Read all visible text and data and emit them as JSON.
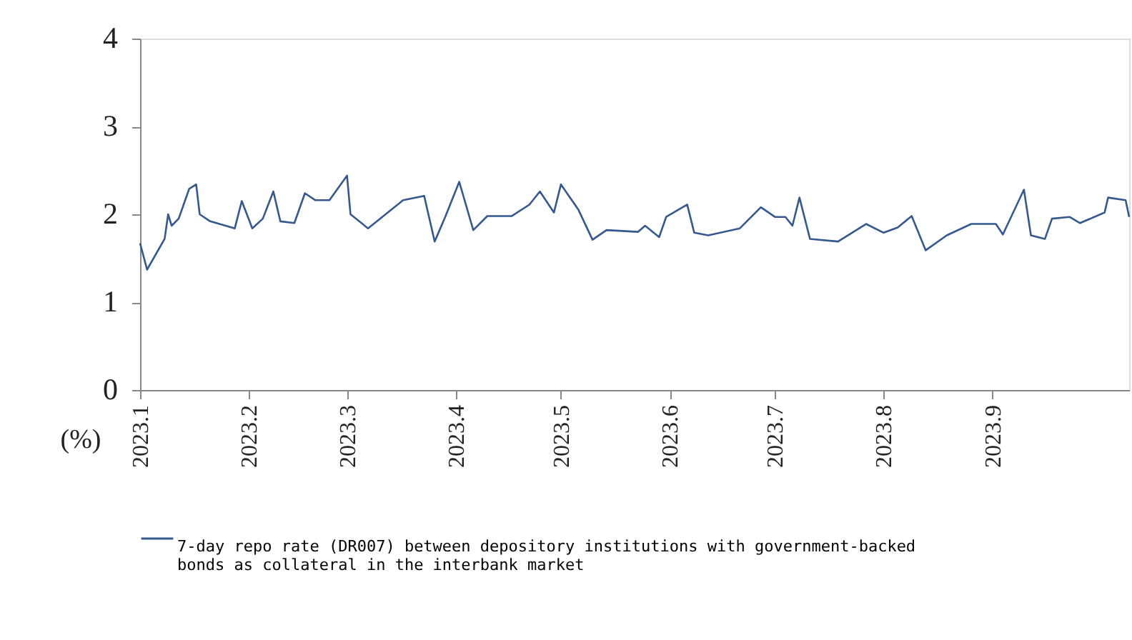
{
  "chart_data": {
    "type": "line",
    "ylabel": "(%)",
    "x": [
      "2023-01-01",
      "2023-01-03",
      "2023-01-08",
      "2023-01-09",
      "2023-01-10",
      "2023-01-12",
      "2023-01-15",
      "2023-01-17",
      "2023-01-18",
      "2023-01-21",
      "2023-01-28",
      "2023-01-30",
      "2023-02-02",
      "2023-02-05",
      "2023-02-08",
      "2023-02-10",
      "2023-02-14",
      "2023-02-17",
      "2023-02-20",
      "2023-02-24",
      "2023-03-01",
      "2023-03-02",
      "2023-03-07",
      "2023-03-12",
      "2023-03-17",
      "2023-03-23",
      "2023-03-26",
      "2023-03-29",
      "2023-04-02",
      "2023-04-06",
      "2023-04-10",
      "2023-04-17",
      "2023-04-22",
      "2023-04-25",
      "2023-04-29",
      "2023-05-01",
      "2023-05-06",
      "2023-05-10",
      "2023-05-14",
      "2023-05-23",
      "2023-05-25",
      "2023-05-29",
      "2023-05-31",
      "2023-06-06",
      "2023-06-08",
      "2023-06-12",
      "2023-06-21",
      "2023-06-27",
      "2023-07-01",
      "2023-07-04",
      "2023-07-06",
      "2023-07-08",
      "2023-07-11",
      "2023-07-19",
      "2023-07-27",
      "2023-08-01",
      "2023-08-05",
      "2023-08-09",
      "2023-08-13",
      "2023-08-19",
      "2023-08-26",
      "2023-09-02",
      "2023-09-04",
      "2023-09-10",
      "2023-09-12",
      "2023-09-16",
      "2023-09-18",
      "2023-09-23",
      "2023-09-26",
      "2023-10-03",
      "2023-10-04",
      "2023-10-09",
      "2023-10-10"
    ],
    "series": [
      {
        "name": "7-day repo rate (DR007) between depository institutions with government-backed bonds as collateral in the interbank market",
        "color": "#35598f",
        "values": [
          1.67,
          1.37,
          1.72,
          2.0,
          1.87,
          1.95,
          2.29,
          2.34,
          2.0,
          1.92,
          1.84,
          2.15,
          1.84,
          1.95,
          2.26,
          1.92,
          1.9,
          2.24,
          2.16,
          2.16,
          2.44,
          2.0,
          1.84,
          2.0,
          2.16,
          2.21,
          1.69,
          1.97,
          2.37,
          1.82,
          1.98,
          1.98,
          2.11,
          2.26,
          2.02,
          2.34,
          2.05,
          1.71,
          1.82,
          1.8,
          1.87,
          1.74,
          1.97,
          2.11,
          1.79,
          1.76,
          1.84,
          2.08,
          1.97,
          1.97,
          1.87,
          2.19,
          1.72,
          1.69,
          1.89,
          1.79,
          1.85,
          1.98,
          1.59,
          1.76,
          1.89,
          1.89,
          1.77,
          2.28,
          1.76,
          1.72,
          1.95,
          1.97,
          1.9,
          2.02,
          2.19,
          2.16,
          1.97
        ]
      }
    ],
    "xlim": [
      "2023-01-01",
      "2023-10-10"
    ],
    "xticks": [
      {
        "value": "2023-01-01",
        "label": "2023.1"
      },
      {
        "value": "2023-02-01",
        "label": "2023.2"
      },
      {
        "value": "2023-03-01",
        "label": "2023.3"
      },
      {
        "value": "2023-04-01",
        "label": "2023.4"
      },
      {
        "value": "2023-05-01",
        "label": "2023.5"
      },
      {
        "value": "2023-06-01",
        "label": "2023.6"
      },
      {
        "value": "2023-07-01",
        "label": "2023.7"
      },
      {
        "value": "2023-08-01",
        "label": "2023.8"
      },
      {
        "value": "2023-09-01",
        "label": "2023.9"
      }
    ],
    "ylim": [
      0,
      4
    ],
    "yticks": [
      0,
      1,
      2,
      3,
      4
    ],
    "grid": false,
    "legend": "bottom",
    "marker": "none",
    "line_style": "solid"
  }
}
